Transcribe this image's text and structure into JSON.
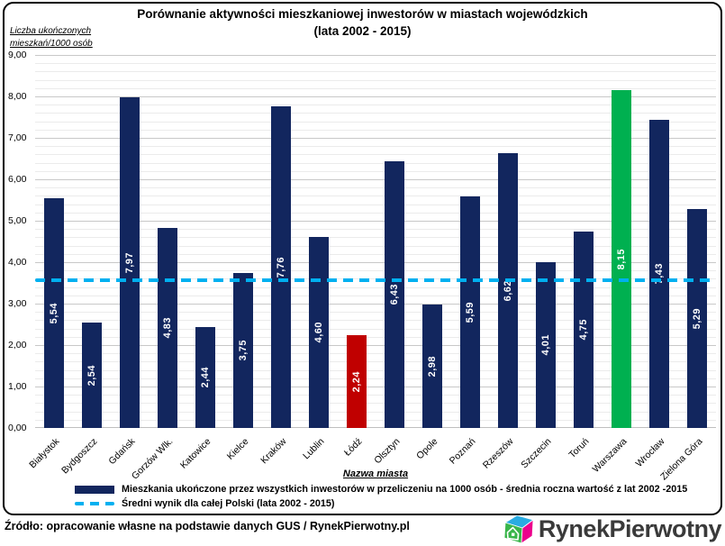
{
  "chart_data": {
    "type": "bar",
    "title": "Porównanie aktywności mieszkaniowej inwestorów w miastach wojewódzkich",
    "subtitle": "(lata 2002 - 2015)",
    "ylabel_lines": [
      "Liczba ukończonych",
      "mieszkań/1000 osób"
    ],
    "xlabel": "Nazwa miasta",
    "ylim": [
      0,
      9
    ],
    "ytick_labels": [
      "0,00",
      "1,00",
      "2,00",
      "3,00",
      "4,00",
      "5,00",
      "6,00",
      "7,00",
      "8,00",
      "9,00"
    ],
    "minor_grid_step": 0.2,
    "grid": true,
    "categories": [
      "Białystok",
      "Bydgoszcz",
      "Gdańsk",
      "Gorzów Wlk.",
      "Katowice",
      "Kielce",
      "Kraków",
      "Lublin",
      "Łódź",
      "Olsztyn",
      "Opole",
      "Poznań",
      "Rzeszów",
      "Szczecin",
      "Toruń",
      "Warszawa",
      "Wrocław",
      "Zielona Góra"
    ],
    "values": [
      5.54,
      2.54,
      7.97,
      4.83,
      2.44,
      3.75,
      7.76,
      4.6,
      2.24,
      6.43,
      2.98,
      5.59,
      6.62,
      4.01,
      4.75,
      8.15,
      7.43,
      5.29
    ],
    "value_labels": [
      "5,54",
      "2,54",
      "7,97",
      "4,83",
      "2,44",
      "3,75",
      "7,76",
      "4,60",
      "2,24",
      "6,43",
      "2,98",
      "5,59",
      "6,62",
      "4,01",
      "4,75",
      "8,15",
      "7,43",
      "5,29"
    ],
    "default_bar_color": "#12265E",
    "bar_color_overrides": {
      "8": "#C00000",
      "15": "#00B050"
    },
    "average_line": {
      "value": 3.56,
      "color": "#00B0F0",
      "style": "dashed"
    },
    "legend": [
      {
        "swatch": "solid",
        "color": "#12265E",
        "label": "Mieszkania ukończone przez wszystkich inwestorów w przeliczeniu na 1000 osób - średnia roczna wartość z lat 2002 -2015"
      },
      {
        "swatch": "dashed",
        "color": "#00B0F0",
        "label": "Średni wynik dla całej Polski (lata 2002 - 2015)"
      }
    ]
  },
  "footer": {
    "source": "Źródło: opracowanie własne na podstawie danych GUS / RynekPierwotny.pl",
    "logo": {
      "text": "RynekPierwotny",
      "icon": "house-cube-icon",
      "icon_colors": {
        "top": "#29ABE2",
        "front": "#39B54A",
        "side": "#EC008C"
      }
    }
  }
}
